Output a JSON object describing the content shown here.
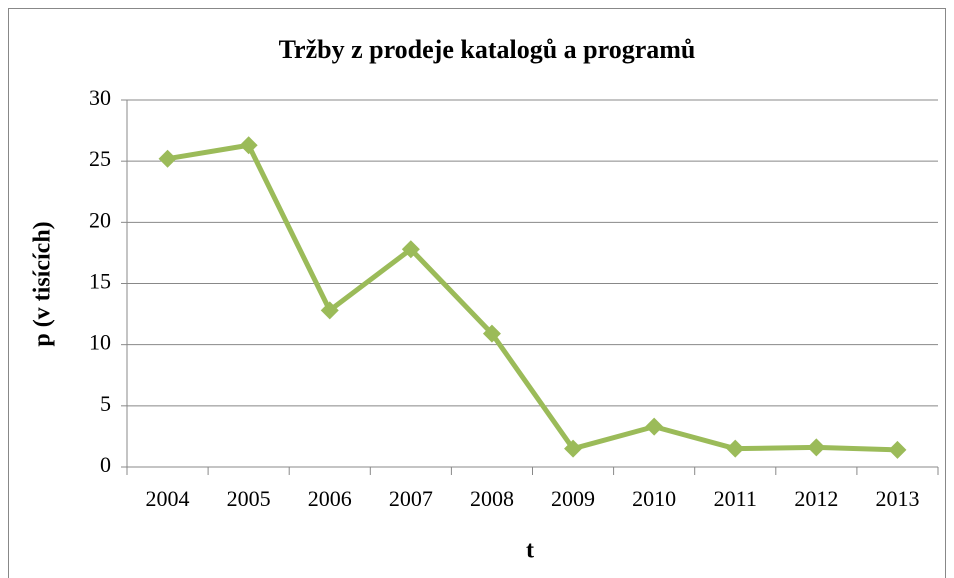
{
  "chart_data": {
    "type": "line",
    "title": "Tržby z prodeje katalogů a programů",
    "x_label": "t",
    "y_label": "p (v tisících)",
    "categories": [
      "2004",
      "2005",
      "2006",
      "2007",
      "2008",
      "2009",
      "2010",
      "2011",
      "2012",
      "2013"
    ],
    "values": [
      25.2,
      26.3,
      12.8,
      17.8,
      10.9,
      1.5,
      3.3,
      1.5,
      1.6,
      1.4
    ],
    "color": "#9bbb59",
    "ylim": [
      0,
      30
    ],
    "yticks": [
      0,
      5,
      10,
      15,
      20,
      25,
      30
    ],
    "grid": true
  }
}
